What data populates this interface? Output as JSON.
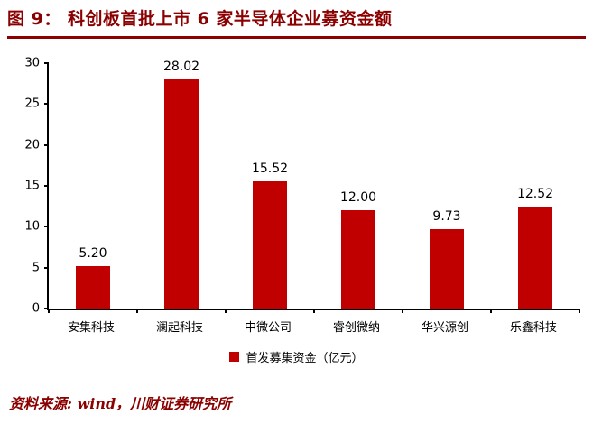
{
  "header": {
    "title": "图 9：  科创板首批上市 6 家半导体企业募资金额"
  },
  "legend": {
    "label": "首发募集资金（亿元）"
  },
  "footer": {
    "source": "资料来源: wind，川财证券研究所"
  },
  "colors": {
    "bar": "#c00000",
    "accent": "#8b0000",
    "axis": "#000000"
  },
  "chart_data": {
    "type": "bar",
    "title": "科创板首批上市 6 家半导体企业募资金额",
    "categories": [
      "安集科技",
      "澜起科技",
      "中微公司",
      "睿创微纳",
      "华兴源创",
      "乐鑫科技"
    ],
    "values": [
      5.2,
      28.02,
      15.52,
      12.0,
      9.73,
      12.52
    ],
    "data_labels": [
      "5.20",
      "28.02",
      "15.52",
      "12.00",
      "9.73",
      "12.52"
    ],
    "series_name": "首发募集资金（亿元）",
    "xlabel": "",
    "ylabel": "",
    "ylim": [
      0,
      30
    ],
    "yticks": [
      0,
      5,
      10,
      15,
      20,
      25,
      30
    ],
    "grid": false,
    "legend_position": "bottom"
  }
}
